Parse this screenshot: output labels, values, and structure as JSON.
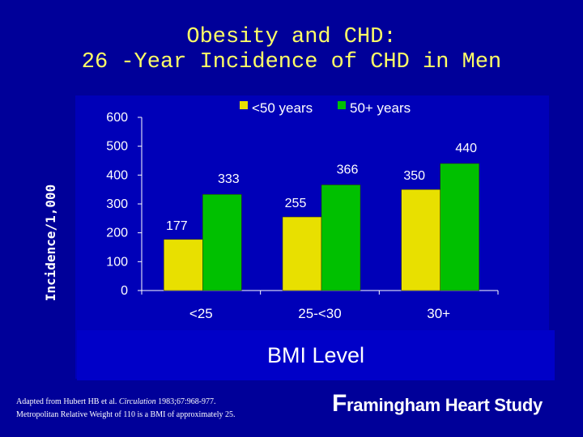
{
  "colors": {
    "background": "#000099",
    "title": "#FFFF66",
    "plot_panel": "#0000B8",
    "series_under50": "#E8E000",
    "series_50plus": "#00C000",
    "text": "#FFFFFF"
  },
  "title": {
    "line1": "Obesity and CHD:",
    "line2": "26 -Year Incidence of CHD in Men"
  },
  "chart_data": {
    "type": "bar",
    "title": "Obesity and CHD: 26 -Year Incidence of CHD in Men",
    "xlabel": "BMI Level",
    "ylabel": "Incidence/1,000",
    "categories": [
      "<25",
      "25-<30",
      "30+"
    ],
    "series": [
      {
        "name": "<50 years",
        "values": [
          177,
          255,
          350
        ]
      },
      {
        "name": "50+ years",
        "values": [
          333,
          366,
          440
        ]
      }
    ],
    "ylim": [
      0,
      600
    ],
    "yticks": [
      0,
      100,
      200,
      300,
      400,
      500,
      600
    ],
    "legend": "top"
  },
  "footnote": {
    "line1_pre": "Adapted from Hubert HB et al. ",
    "line1_journal": "Circulation",
    "line1_post": " 1983;67:968-977.",
    "line2": "Metropolitan Relative Weight of 110 is a BMI of approximately 25."
  },
  "brand": {
    "initial": "F",
    "rest": "ramingham Heart Study"
  }
}
